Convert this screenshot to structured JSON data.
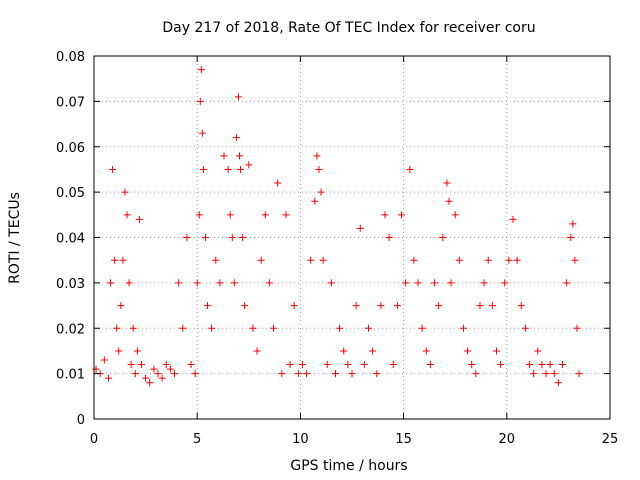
{
  "chart_data": {
    "type": "scatter",
    "title": "Day 217 of 2018, Rate Of TEC Index for receiver coru",
    "xlabel": "GPS time / hours",
    "ylabel": "ROTI / TECUs",
    "xlim": [
      0,
      25
    ],
    "ylim": [
      0,
      0.08
    ],
    "xticks": [
      0,
      5,
      10,
      15,
      20,
      25
    ],
    "yticks": [
      0,
      0.01,
      0.02,
      0.03,
      0.04,
      0.05,
      0.06,
      0.07,
      0.08
    ],
    "xtick_labels": [
      "0",
      "5",
      "10",
      "15",
      "20",
      "25"
    ],
    "ytick_labels": [
      "0",
      "0.01",
      "0.02",
      "0.03",
      "0.04",
      "0.05",
      "0.06",
      "0.07",
      "0.08"
    ],
    "grid": true,
    "marker": "+",
    "color": "#ff0000",
    "series": [
      {
        "x": [
          0.1,
          0.3,
          0.5,
          0.7,
          0.8,
          0.9,
          1.0,
          1.1,
          1.2,
          1.3,
          1.4,
          1.5,
          1.6,
          1.7,
          1.8,
          1.9,
          2.0,
          2.1,
          2.2,
          2.3,
          2.5,
          2.7,
          2.9,
          3.1,
          3.3,
          3.5,
          3.7,
          3.9,
          4.1,
          4.3,
          4.5,
          4.7,
          4.9,
          5.0,
          5.1,
          5.15,
          5.2,
          5.25,
          5.3,
          5.4,
          5.5,
          5.7,
          5.9,
          6.1,
          6.3,
          6.5,
          6.6,
          6.7,
          6.8,
          6.9,
          7.0,
          7.05,
          7.1,
          7.2,
          7.3,
          7.5,
          7.7,
          7.9,
          8.1,
          8.3,
          8.5,
          8.7,
          8.9,
          9.1,
          9.3,
          9.5,
          9.7,
          9.9,
          10.1,
          10.3,
          10.5,
          10.7,
          10.8,
          10.9,
          11.0,
          11.1,
          11.3,
          11.5,
          11.7,
          11.9,
          12.1,
          12.3,
          12.5,
          12.7,
          12.9,
          13.1,
          13.3,
          13.5,
          13.7,
          13.9,
          14.1,
          14.3,
          14.5,
          14.7,
          14.9,
          15.1,
          15.3,
          15.5,
          15.7,
          15.9,
          16.1,
          16.3,
          16.5,
          16.7,
          16.9,
          17.1,
          17.2,
          17.3,
          17.5,
          17.7,
          17.9,
          18.1,
          18.3,
          18.5,
          18.7,
          18.9,
          19.1,
          19.3,
          19.5,
          19.7,
          19.9,
          20.1,
          20.3,
          20.5,
          20.7,
          20.9,
          21.1,
          21.3,
          21.5,
          21.7,
          21.9,
          22.1,
          22.3,
          22.5,
          22.7,
          22.9,
          23.1,
          23.2,
          23.3,
          23.4,
          23.5
        ],
        "y": [
          0.011,
          0.01,
          0.013,
          0.009,
          0.03,
          0.055,
          0.035,
          0.02,
          0.015,
          0.025,
          0.035,
          0.05,
          0.045,
          0.03,
          0.012,
          0.02,
          0.01,
          0.015,
          0.044,
          0.012,
          0.009,
          0.008,
          0.011,
          0.01,
          0.009,
          0.012,
          0.011,
          0.01,
          0.03,
          0.02,
          0.04,
          0.012,
          0.01,
          0.03,
          0.045,
          0.07,
          0.077,
          0.063,
          0.055,
          0.04,
          0.025,
          0.02,
          0.035,
          0.03,
          0.058,
          0.055,
          0.045,
          0.04,
          0.03,
          0.062,
          0.071,
          0.058,
          0.055,
          0.04,
          0.025,
          0.056,
          0.02,
          0.015,
          0.035,
          0.045,
          0.03,
          0.02,
          0.052,
          0.01,
          0.045,
          0.012,
          0.025,
          0.01,
          0.012,
          0.01,
          0.035,
          0.048,
          0.058,
          0.055,
          0.05,
          0.035,
          0.012,
          0.03,
          0.01,
          0.02,
          0.015,
          0.012,
          0.01,
          0.025,
          0.042,
          0.012,
          0.02,
          0.015,
          0.01,
          0.025,
          0.045,
          0.04,
          0.012,
          0.025,
          0.045,
          0.03,
          0.055,
          0.035,
          0.03,
          0.02,
          0.015,
          0.012,
          0.03,
          0.025,
          0.04,
          0.052,
          0.048,
          0.03,
          0.045,
          0.035,
          0.02,
          0.015,
          0.012,
          0.01,
          0.025,
          0.03,
          0.035,
          0.025,
          0.015,
          0.012,
          0.03,
          0.035,
          0.044,
          0.035,
          0.025,
          0.02,
          0.012,
          0.01,
          0.015,
          0.012,
          0.01,
          0.012,
          0.01,
          0.008,
          0.012,
          0.03,
          0.04,
          0.043,
          0.035,
          0.02,
          0.01
        ]
      }
    ]
  }
}
